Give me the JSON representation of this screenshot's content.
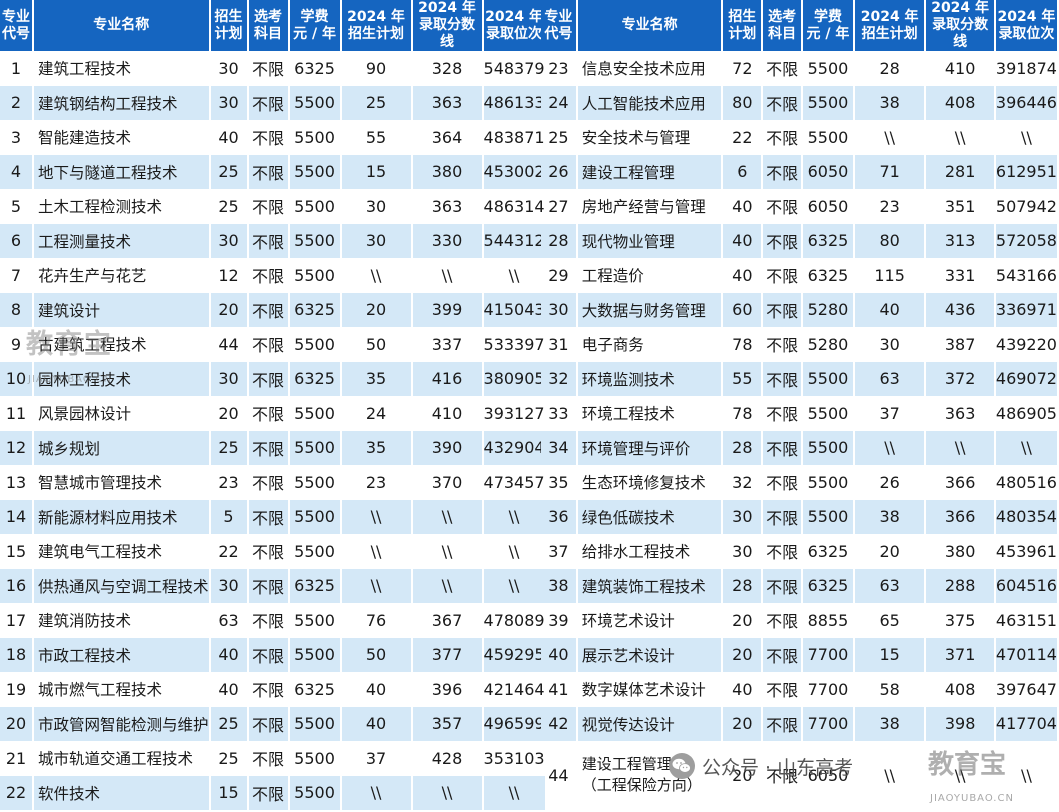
{
  "headers": [
    "专业\n代号",
    "专业名称",
    "招生\n计划",
    "选考\n科目",
    "学费\n元 / 年",
    "2024 年\n招生计划",
    "2024 年\n录取分数线",
    "2024 年\n录取位次"
  ],
  "left_rows": [
    [
      "1",
      "建筑工程技术",
      "30",
      "不限",
      "6325",
      "90",
      "328",
      "548379"
    ],
    [
      "2",
      "建筑钢结构工程技术",
      "30",
      "不限",
      "5500",
      "25",
      "363",
      "486133"
    ],
    [
      "3",
      "智能建造技术",
      "40",
      "不限",
      "5500",
      "55",
      "364",
      "483871"
    ],
    [
      "4",
      "地下与隧道工程技术",
      "25",
      "不限",
      "5500",
      "15",
      "380",
      "453002"
    ],
    [
      "5",
      "土木工程检测技术",
      "25",
      "不限",
      "5500",
      "30",
      "363",
      "486314"
    ],
    [
      "6",
      "工程测量技术",
      "30",
      "不限",
      "5500",
      "30",
      "330",
      "544312"
    ],
    [
      "7",
      "花卉生产与花艺",
      "12",
      "不限",
      "5500",
      "\\\\",
      "\\\\",
      "\\\\"
    ],
    [
      "8",
      "建筑设计",
      "20",
      "不限",
      "6325",
      "20",
      "399",
      "415043"
    ],
    [
      "9",
      "古建筑工程技术",
      "44",
      "不限",
      "5500",
      "50",
      "337",
      "533397"
    ],
    [
      "10",
      "园林工程技术",
      "30",
      "不限",
      "6325",
      "35",
      "416",
      "380905"
    ],
    [
      "11",
      "风景园林设计",
      "20",
      "不限",
      "5500",
      "24",
      "410",
      "393127"
    ],
    [
      "12",
      "城乡规划",
      "25",
      "不限",
      "5500",
      "35",
      "390",
      "432904"
    ],
    [
      "13",
      "智慧城市管理技术",
      "23",
      "不限",
      "5500",
      "23",
      "370",
      "473457"
    ],
    [
      "14",
      "新能源材料应用技术",
      "5",
      "不限",
      "5500",
      "\\\\",
      "\\\\",
      "\\\\"
    ],
    [
      "15",
      "建筑电气工程技术",
      "22",
      "不限",
      "5500",
      "\\\\",
      "\\\\",
      "\\\\"
    ],
    [
      "16",
      "供热通风与空调工程技术",
      "30",
      "不限",
      "6325",
      "\\\\",
      "\\\\",
      "\\\\"
    ],
    [
      "17",
      "建筑消防技术",
      "63",
      "不限",
      "5500",
      "76",
      "367",
      "478089"
    ],
    [
      "18",
      "市政工程技术",
      "40",
      "不限",
      "5500",
      "50",
      "377",
      "459295"
    ],
    [
      "19",
      "城市燃气工程技术",
      "40",
      "不限",
      "6325",
      "40",
      "396",
      "421464"
    ],
    [
      "20",
      "市政管网智能检测与维护",
      "25",
      "不限",
      "5500",
      "40",
      "357",
      "496599"
    ],
    [
      "21",
      "城市轨道交通工程技术",
      "25",
      "不限",
      "5500",
      "37",
      "428",
      "353103"
    ],
    [
      "22",
      "软件技术",
      "15",
      "不限",
      "5500",
      "\\\\",
      "\\\\",
      "\\\\"
    ]
  ],
  "right_rows": [
    [
      "23",
      "信息安全技术应用",
      "72",
      "不限",
      "5500",
      "28",
      "410",
      "391874"
    ],
    [
      "24",
      "人工智能技术应用",
      "80",
      "不限",
      "5500",
      "38",
      "408",
      "396446"
    ],
    [
      "25",
      "安全技术与管理",
      "22",
      "不限",
      "5500",
      "\\\\",
      "\\\\",
      "\\\\"
    ],
    [
      "26",
      "建设工程管理",
      "6",
      "不限",
      "6050",
      "71",
      "281",
      "612951"
    ],
    [
      "27",
      "房地产经营与管理",
      "40",
      "不限",
      "6050",
      "23",
      "351",
      "507942"
    ],
    [
      "28",
      "现代物业管理",
      "40",
      "不限",
      "6325",
      "80",
      "313",
      "572058"
    ],
    [
      "29",
      "工程造价",
      "40",
      "不限",
      "6325",
      "115",
      "331",
      "543166"
    ],
    [
      "30",
      "大数据与财务管理",
      "60",
      "不限",
      "5280",
      "40",
      "436",
      "336971"
    ],
    [
      "31",
      "电子商务",
      "78",
      "不限",
      "5280",
      "30",
      "387",
      "439220"
    ],
    [
      "32",
      "环境监测技术",
      "55",
      "不限",
      "5500",
      "63",
      "372",
      "469072"
    ],
    [
      "33",
      "环境工程技术",
      "78",
      "不限",
      "5500",
      "37",
      "363",
      "486905"
    ],
    [
      "34",
      "环境管理与评价",
      "28",
      "不限",
      "5500",
      "\\\\",
      "\\\\",
      "\\\\"
    ],
    [
      "35",
      "生态环境修复技术",
      "32",
      "不限",
      "5500",
      "26",
      "366",
      "480516"
    ],
    [
      "36",
      "绿色低碳技术",
      "30",
      "不限",
      "5500",
      "38",
      "366",
      "480354"
    ],
    [
      "37",
      "给排水工程技术",
      "30",
      "不限",
      "6325",
      "20",
      "380",
      "453961"
    ],
    [
      "38",
      "建筑装饰工程技术",
      "28",
      "不限",
      "6325",
      "63",
      "288",
      "604516"
    ],
    [
      "39",
      "环境艺术设计",
      "20",
      "不限",
      "8855",
      "65",
      "375",
      "463151"
    ],
    [
      "40",
      "展示艺术设计",
      "20",
      "不限",
      "7700",
      "15",
      "371",
      "470114"
    ],
    [
      "41",
      "数字媒体艺术设计",
      "40",
      "不限",
      "7700",
      "58",
      "408",
      "397647"
    ],
    [
      "42",
      "视觉传达设计",
      "20",
      "不限",
      "7700",
      "38",
      "398",
      "417704"
    ],
    [
      "44",
      "建设工程管理\n（工程保险方向）",
      "20",
      "不限",
      "6050",
      "\\\\",
      "\\\\",
      "\\\\"
    ]
  ],
  "watermarks": {
    "brand": "教育宝",
    "domain": "JIAOYUBAO.CN",
    "wechat_text": "公众号 · 山东高考",
    "wechat_icon": "wechat-icon"
  },
  "colors": {
    "header_bg": "#1565c0",
    "alt_row_bg": "#d4e8f7"
  }
}
